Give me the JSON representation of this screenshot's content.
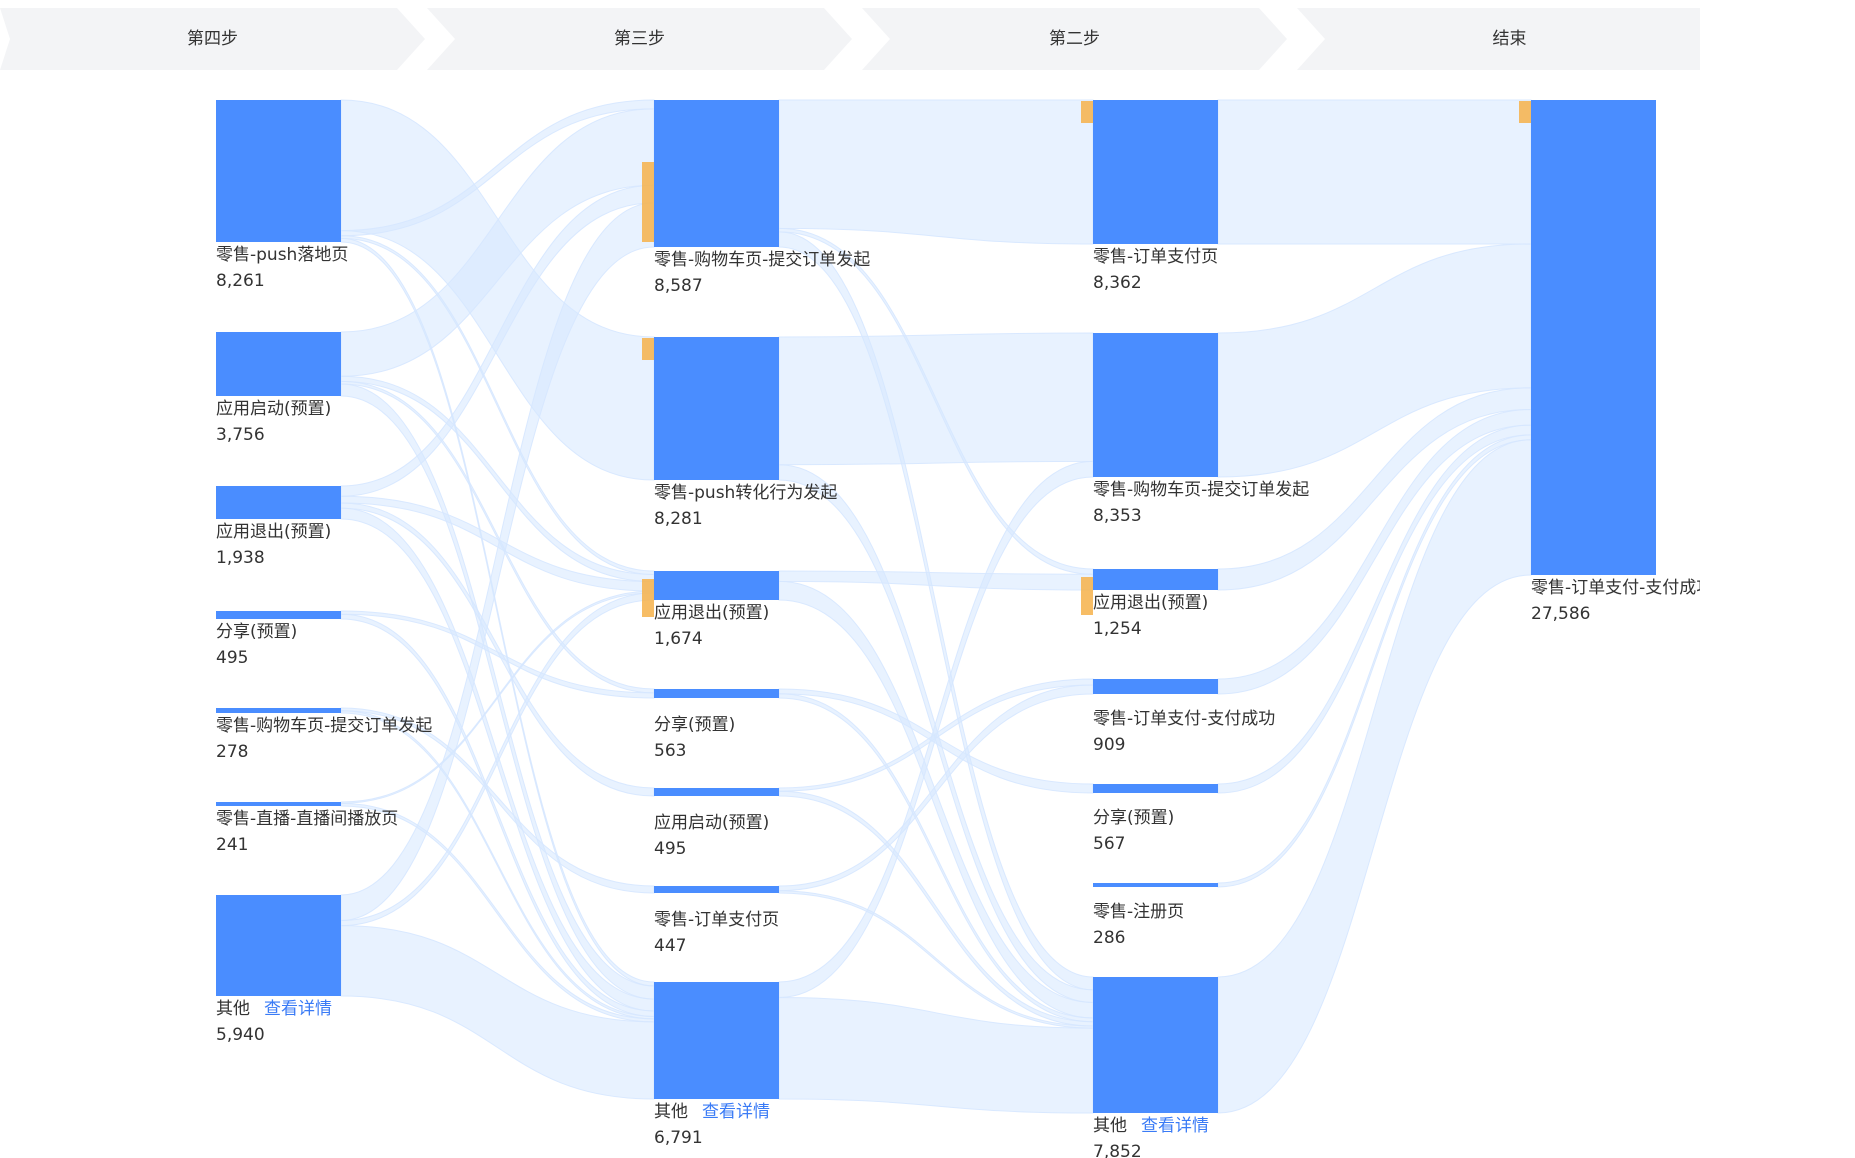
{
  "steps": [
    "第四步",
    "第三步",
    "第二步",
    "结束"
  ],
  "colors": {
    "node": "#4a8dff",
    "link": "#d6e7ff",
    "accent": "#f6b24a",
    "step_bg": "#f3f4f6",
    "link_text": "#3a7bf6"
  },
  "detail_label": "查看详情",
  "columns": [
    {
      "nodes": [
        {
          "id": "c0n0",
          "label": "零售-push落地页",
          "value": "8,261"
        },
        {
          "id": "c0n1",
          "label": "应用启动(预置)",
          "value": "3,756"
        },
        {
          "id": "c0n2",
          "label": "应用退出(预置)",
          "value": "1,938"
        },
        {
          "id": "c0n3",
          "label": "分享(预置)",
          "value": "495"
        },
        {
          "id": "c0n4",
          "label": "零售-购物车页-提交订单发起",
          "value": "278"
        },
        {
          "id": "c0n5",
          "label": "零售-直播-直播间播放页",
          "value": "241"
        },
        {
          "id": "c0n6",
          "label": "其他",
          "value": "5,940",
          "detail": true
        }
      ]
    },
    {
      "nodes": [
        {
          "id": "c1n0",
          "label": "零售-购物车页-提交订单发起",
          "value": "8,587"
        },
        {
          "id": "c1n1",
          "label": "零售-push转化行为发起",
          "value": "8,281"
        },
        {
          "id": "c1n2",
          "label": "应用退出(预置)",
          "value": "1,674"
        },
        {
          "id": "c1n3",
          "label": "分享(预置)",
          "value": "563"
        },
        {
          "id": "c1n4",
          "label": "应用启动(预置)",
          "value": "495"
        },
        {
          "id": "c1n5",
          "label": "零售-订单支付页",
          "value": "447"
        },
        {
          "id": "c1n6",
          "label": "其他",
          "value": "6,791",
          "detail": true
        }
      ]
    },
    {
      "nodes": [
        {
          "id": "c2n0",
          "label": "零售-订单支付页",
          "value": "8,362"
        },
        {
          "id": "c2n1",
          "label": "零售-购物车页-提交订单发起",
          "value": "8,353"
        },
        {
          "id": "c2n2",
          "label": "应用退出(预置)",
          "value": "1,254"
        },
        {
          "id": "c2n3",
          "label": "零售-订单支付-支付成功",
          "value": "909"
        },
        {
          "id": "c2n4",
          "label": "分享(预置)",
          "value": "567"
        },
        {
          "id": "c2n5",
          "label": "零售-注册页",
          "value": "286"
        },
        {
          "id": "c2n6",
          "label": "其他",
          "value": "7,852",
          "detail": true
        }
      ]
    },
    {
      "nodes": [
        {
          "id": "c3n0",
          "label": "零售-订单支付-支付成功",
          "value": "27,586"
        }
      ]
    }
  ],
  "links": [
    {
      "source": "c0n0",
      "target": "c1n1",
      "value": 7600
    },
    {
      "source": "c0n0",
      "target": "c1n0",
      "value": 300
    },
    {
      "source": "c0n0",
      "target": "c1n2",
      "value": 150
    },
    {
      "source": "c0n0",
      "target": "c1n6",
      "value": 211
    },
    {
      "source": "c0n1",
      "target": "c1n0",
      "value": 2600
    },
    {
      "source": "c0n1",
      "target": "c1n2",
      "value": 300
    },
    {
      "source": "c0n1",
      "target": "c1n3",
      "value": 150
    },
    {
      "source": "c0n1",
      "target": "c1n6",
      "value": 706
    },
    {
      "source": "c0n2",
      "target": "c1n0",
      "value": 600
    },
    {
      "source": "c0n2",
      "target": "c1n2",
      "value": 400
    },
    {
      "source": "c0n2",
      "target": "c1n4",
      "value": 300
    },
    {
      "source": "c0n2",
      "target": "c1n6",
      "value": 638
    },
    {
      "source": "c0n3",
      "target": "c1n3",
      "value": 200
    },
    {
      "source": "c0n3",
      "target": "c1n6",
      "value": 295
    },
    {
      "source": "c0n4",
      "target": "c1n5",
      "value": 150
    },
    {
      "source": "c0n4",
      "target": "c1n6",
      "value": 128
    },
    {
      "source": "c0n5",
      "target": "c1n2",
      "value": 80
    },
    {
      "source": "c0n5",
      "target": "c1n6",
      "value": 161
    },
    {
      "source": "c0n6",
      "target": "c1n0",
      "value": 1500
    },
    {
      "source": "c0n6",
      "target": "c1n2",
      "value": 300
    },
    {
      "source": "c0n6",
      "target": "c1n6",
      "value": 4140
    },
    {
      "source": "c1n0",
      "target": "c2n0",
      "value": 7500
    },
    {
      "source": "c1n0",
      "target": "c2n2",
      "value": 200
    },
    {
      "source": "c1n0",
      "target": "c2n6",
      "value": 887
    },
    {
      "source": "c1n1",
      "target": "c2n1",
      "value": 7400
    },
    {
      "source": "c1n1",
      "target": "c2n6",
      "value": 881
    },
    {
      "source": "c1n2",
      "target": "c2n2",
      "value": 600
    },
    {
      "source": "c1n2",
      "target": "c2n6",
      "value": 1074
    },
    {
      "source": "c1n3",
      "target": "c2n4",
      "value": 300
    },
    {
      "source": "c1n3",
      "target": "c2n6",
      "value": 263
    },
    {
      "source": "c1n4",
      "target": "c2n3",
      "value": 200
    },
    {
      "source": "c1n4",
      "target": "c2n6",
      "value": 295
    },
    {
      "source": "c1n5",
      "target": "c2n3",
      "value": 300
    },
    {
      "source": "c1n5",
      "target": "c2n6",
      "value": 147
    },
    {
      "source": "c1n6",
      "target": "c2n1",
      "value": 900
    },
    {
      "source": "c1n6",
      "target": "c2n6",
      "value": 5891
    },
    {
      "source": "c2n0",
      "target": "c3n0",
      "value": 8362
    },
    {
      "source": "c2n1",
      "target": "c3n0",
      "value": 8353
    },
    {
      "source": "c2n2",
      "target": "c3n0",
      "value": 1254
    },
    {
      "source": "c2n3",
      "target": "c3n0",
      "value": 909
    },
    {
      "source": "c2n4",
      "target": "c3n0",
      "value": 567
    },
    {
      "source": "c2n5",
      "target": "c3n0",
      "value": 286
    },
    {
      "source": "c2n6",
      "target": "c3n0",
      "value": 7852
    }
  ]
}
